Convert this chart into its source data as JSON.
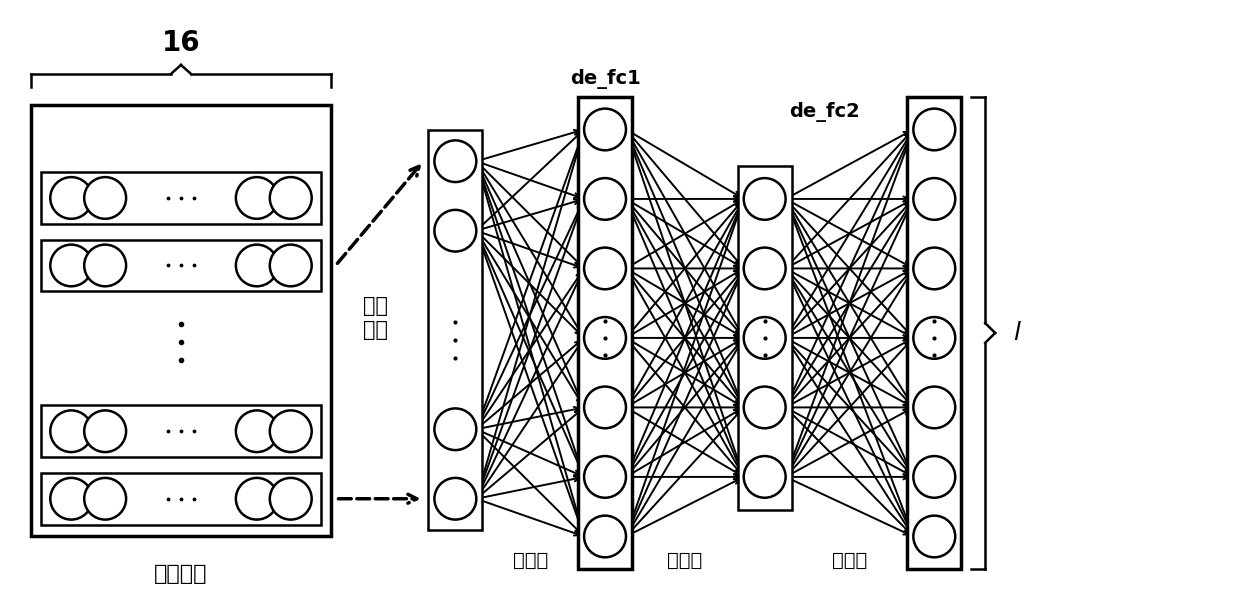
{
  "bg_color": "#ffffff",
  "label_16": "16",
  "label_masking": "掩膜\n重塑",
  "label_capsule": "高级胶囊",
  "label_de_fc1": "de_fc1",
  "label_de_fc2": "de_fc2",
  "label_l": "l",
  "label_quanlian1": "全连接",
  "label_quanlian2": "全连接",
  "label_quanlian3": "全连接"
}
